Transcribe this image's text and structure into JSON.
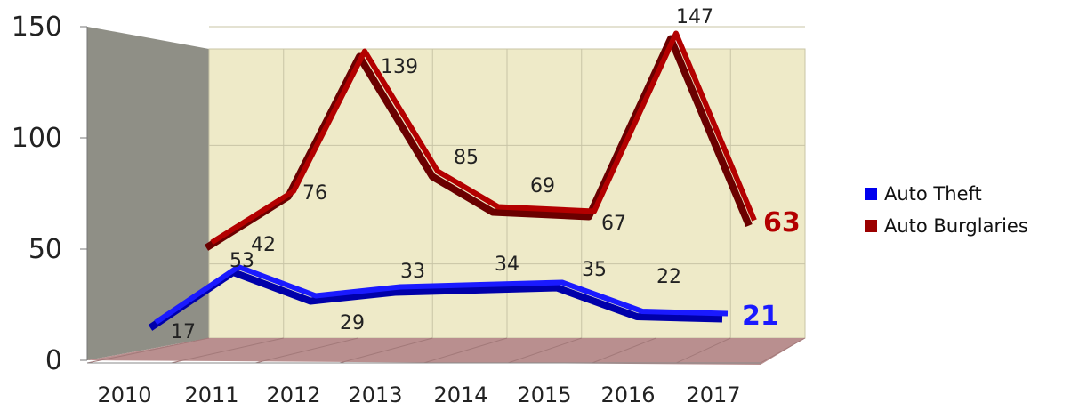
{
  "chart_data": {
    "type": "line",
    "categories": [
      "2010",
      "2011",
      "2012",
      "2013",
      "2014",
      "2015",
      "2016",
      "2017"
    ],
    "ylim": [
      0,
      150
    ],
    "yticks": [
      0,
      50,
      100,
      150
    ],
    "grid": true,
    "legend_position": "right",
    "series": [
      {
        "name": "Auto Theft",
        "color": "#0000ee",
        "values": [
          17,
          42,
          29,
          33,
          34,
          35,
          22,
          21
        ],
        "point_labels": [
          "17",
          "42",
          "29",
          "33",
          "34",
          "35",
          "22",
          "21"
        ],
        "start_label": null
      },
      {
        "name": "Auto Burglaries",
        "color": "#9b0000",
        "values": [
          53,
          76,
          139,
          85,
          69,
          67,
          147,
          63
        ],
        "point_labels": [
          "53",
          "76",
          "139",
          "85",
          "69",
          "67",
          "147",
          "63"
        ]
      }
    ]
  }
}
